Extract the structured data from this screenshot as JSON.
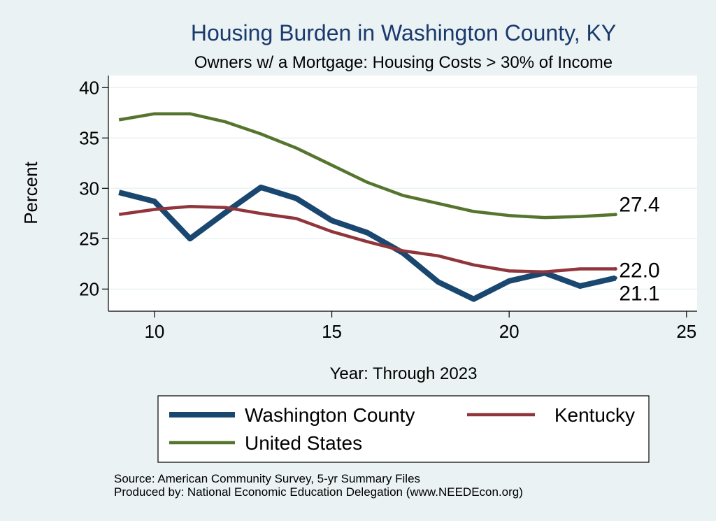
{
  "chart_data": {
    "type": "line",
    "title": "Housing Burden in Washington County, KY",
    "subtitle": "Owners w/ a Mortgage: Housing Costs > 30% of Income",
    "xlabel": "Year: Through 2023",
    "ylabel": "Percent",
    "xlim": [
      8.7,
      25.3
    ],
    "ylim": [
      17.8,
      41.2
    ],
    "xticks": [
      10,
      15,
      20,
      25
    ],
    "yticks": [
      20,
      25,
      30,
      35,
      40
    ],
    "grid": true,
    "legend_position": "bottom",
    "x": [
      9,
      10,
      11,
      12,
      13,
      14,
      15,
      16,
      17,
      18,
      19,
      20,
      21,
      22,
      23
    ],
    "series": [
      {
        "name": "Washington County",
        "color": "#1a476f",
        "values": [
          29.6,
          28.7,
          25.0,
          27.6,
          30.1,
          29.0,
          26.8,
          25.6,
          23.6,
          20.7,
          19.0,
          20.8,
          21.6,
          20.3,
          21.1
        ],
        "end_label": "21.1"
      },
      {
        "name": "Kentucky",
        "color": "#90353b",
        "values": [
          27.4,
          27.9,
          28.2,
          28.1,
          27.5,
          27.0,
          25.7,
          24.7,
          23.8,
          23.3,
          22.4,
          21.8,
          21.7,
          22.0,
          22.0
        ],
        "end_label": "22.0"
      },
      {
        "name": "United States",
        "color": "#55752f",
        "values": [
          36.8,
          37.4,
          37.4,
          36.6,
          35.4,
          34.0,
          32.3,
          30.6,
          29.3,
          28.5,
          27.7,
          27.3,
          27.1,
          27.2,
          27.4
        ],
        "end_label": "27.4"
      }
    ]
  },
  "footer": {
    "source": "Source: American Community Survey, 5-yr Summary Files",
    "produced_by": "Produced by: National Economic Education Delegation (www.NEEDEcon.org)"
  }
}
